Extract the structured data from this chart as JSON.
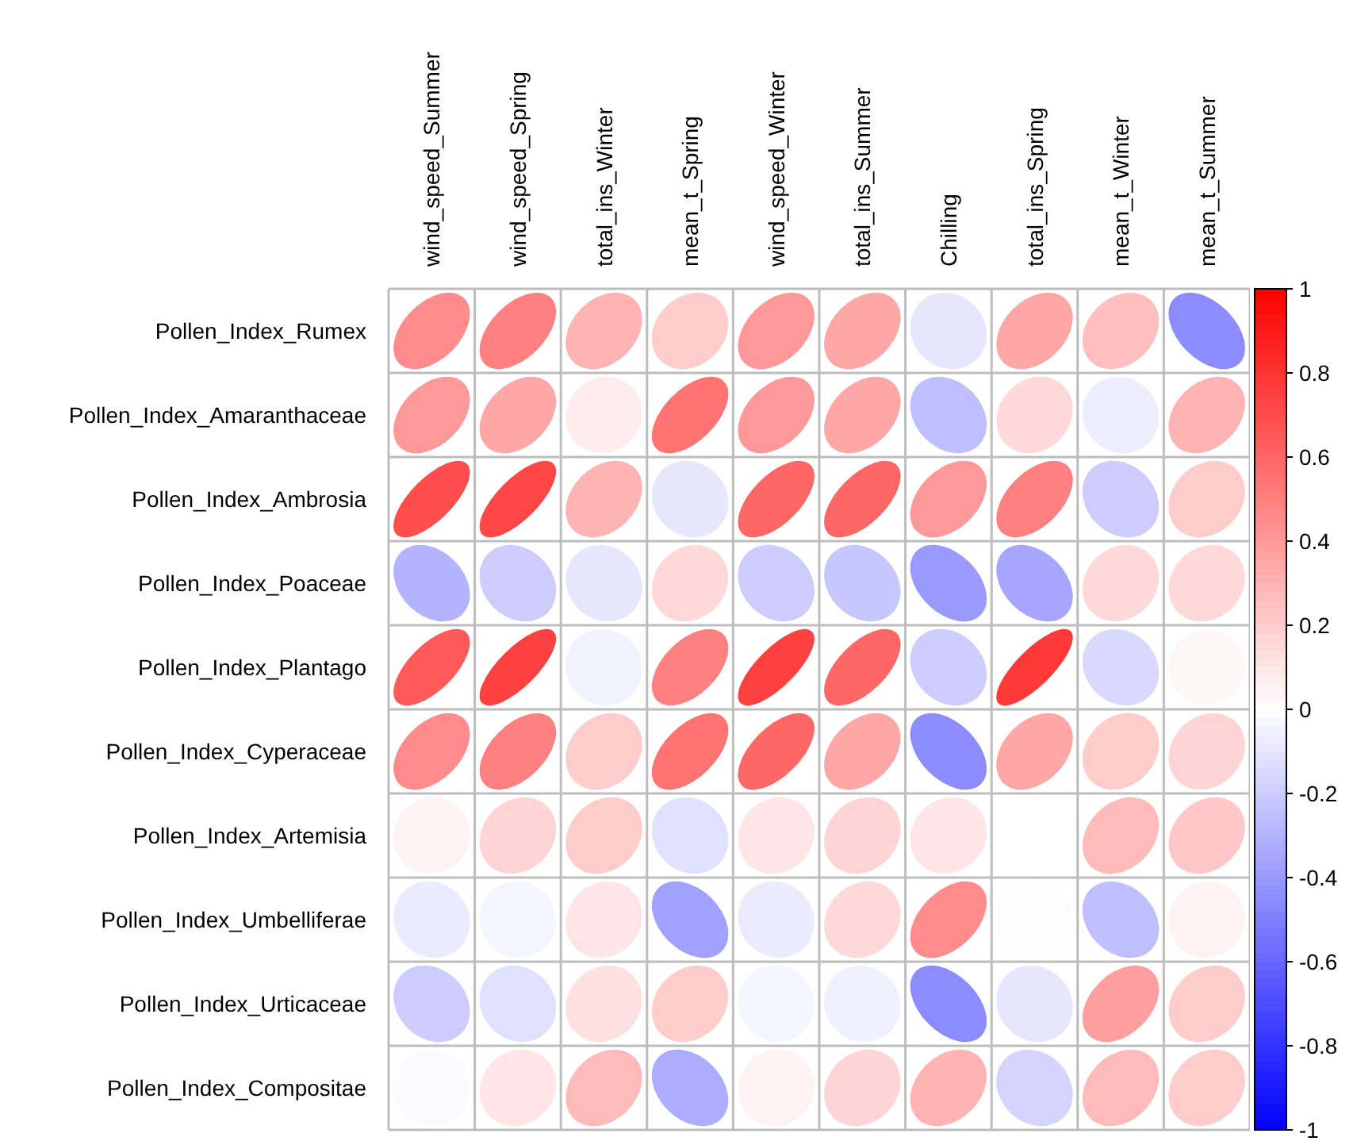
{
  "chart_data": {
    "type": "heatmap",
    "categories": [
      "wind_speed_Summer",
      "wind_speed_Spring",
      "total_ins_Winter",
      "mean_t_Spring",
      "wind_speed_Winter",
      "total_ins_Summer",
      "Chilling",
      "total_ins_Spring",
      "mean_t_Winter",
      "mean_t_Summer"
    ],
    "y_categories": [
      "Pollen_Index_Rumex",
      "Pollen_Index_Amaranthaceae",
      "Pollen_Index_Ambrosia",
      "Pollen_Index_Poaceae",
      "Pollen_Index_Plantago",
      "Pollen_Index_Cyperaceae",
      "Pollen_Index_Artemisia",
      "Pollen_Index_Umbelliferae",
      "Pollen_Index_Urticaceae",
      "Pollen_Index_Compositae"
    ],
    "cells": [
      [
        0.45,
        0.5,
        0.3,
        0.2,
        0.4,
        0.35,
        -0.1,
        0.35,
        0.25,
        -0.45
      ],
      [
        0.4,
        0.35,
        0.07,
        0.55,
        0.4,
        0.35,
        -0.25,
        0.15,
        -0.07,
        0.3
      ],
      [
        0.7,
        0.72,
        0.3,
        -0.1,
        0.6,
        0.6,
        0.4,
        0.5,
        -0.2,
        0.2
      ],
      [
        -0.3,
        -0.2,
        -0.1,
        0.15,
        -0.2,
        -0.22,
        -0.4,
        -0.35,
        0.15,
        0.15
      ],
      [
        0.65,
        0.75,
        -0.05,
        0.5,
        0.75,
        0.6,
        -0.2,
        0.78,
        -0.15,
        0.03
      ],
      [
        0.45,
        0.5,
        0.2,
        0.55,
        0.6,
        0.35,
        -0.45,
        0.35,
        0.2,
        0.17
      ],
      [
        0.05,
        0.17,
        0.2,
        -0.12,
        0.1,
        0.17,
        0.1,
        0.0,
        0.27,
        0.22
      ],
      [
        -0.08,
        -0.04,
        0.1,
        -0.37,
        -0.08,
        0.15,
        0.45,
        -0.01,
        -0.25,
        0.05
      ],
      [
        -0.2,
        -0.12,
        0.12,
        0.2,
        -0.04,
        -0.06,
        -0.45,
        -0.1,
        0.38,
        0.2
      ],
      [
        -0.02,
        0.1,
        0.27,
        -0.32,
        0.05,
        0.17,
        0.3,
        -0.17,
        0.27,
        0.2
      ]
    ],
    "clim": [
      -1,
      1
    ],
    "cticks": [
      -1,
      -0.8,
      -0.6,
      -0.4,
      -0.2,
      0,
      0.2,
      0.4,
      0.6,
      0.8,
      1
    ],
    "grid": true
  }
}
